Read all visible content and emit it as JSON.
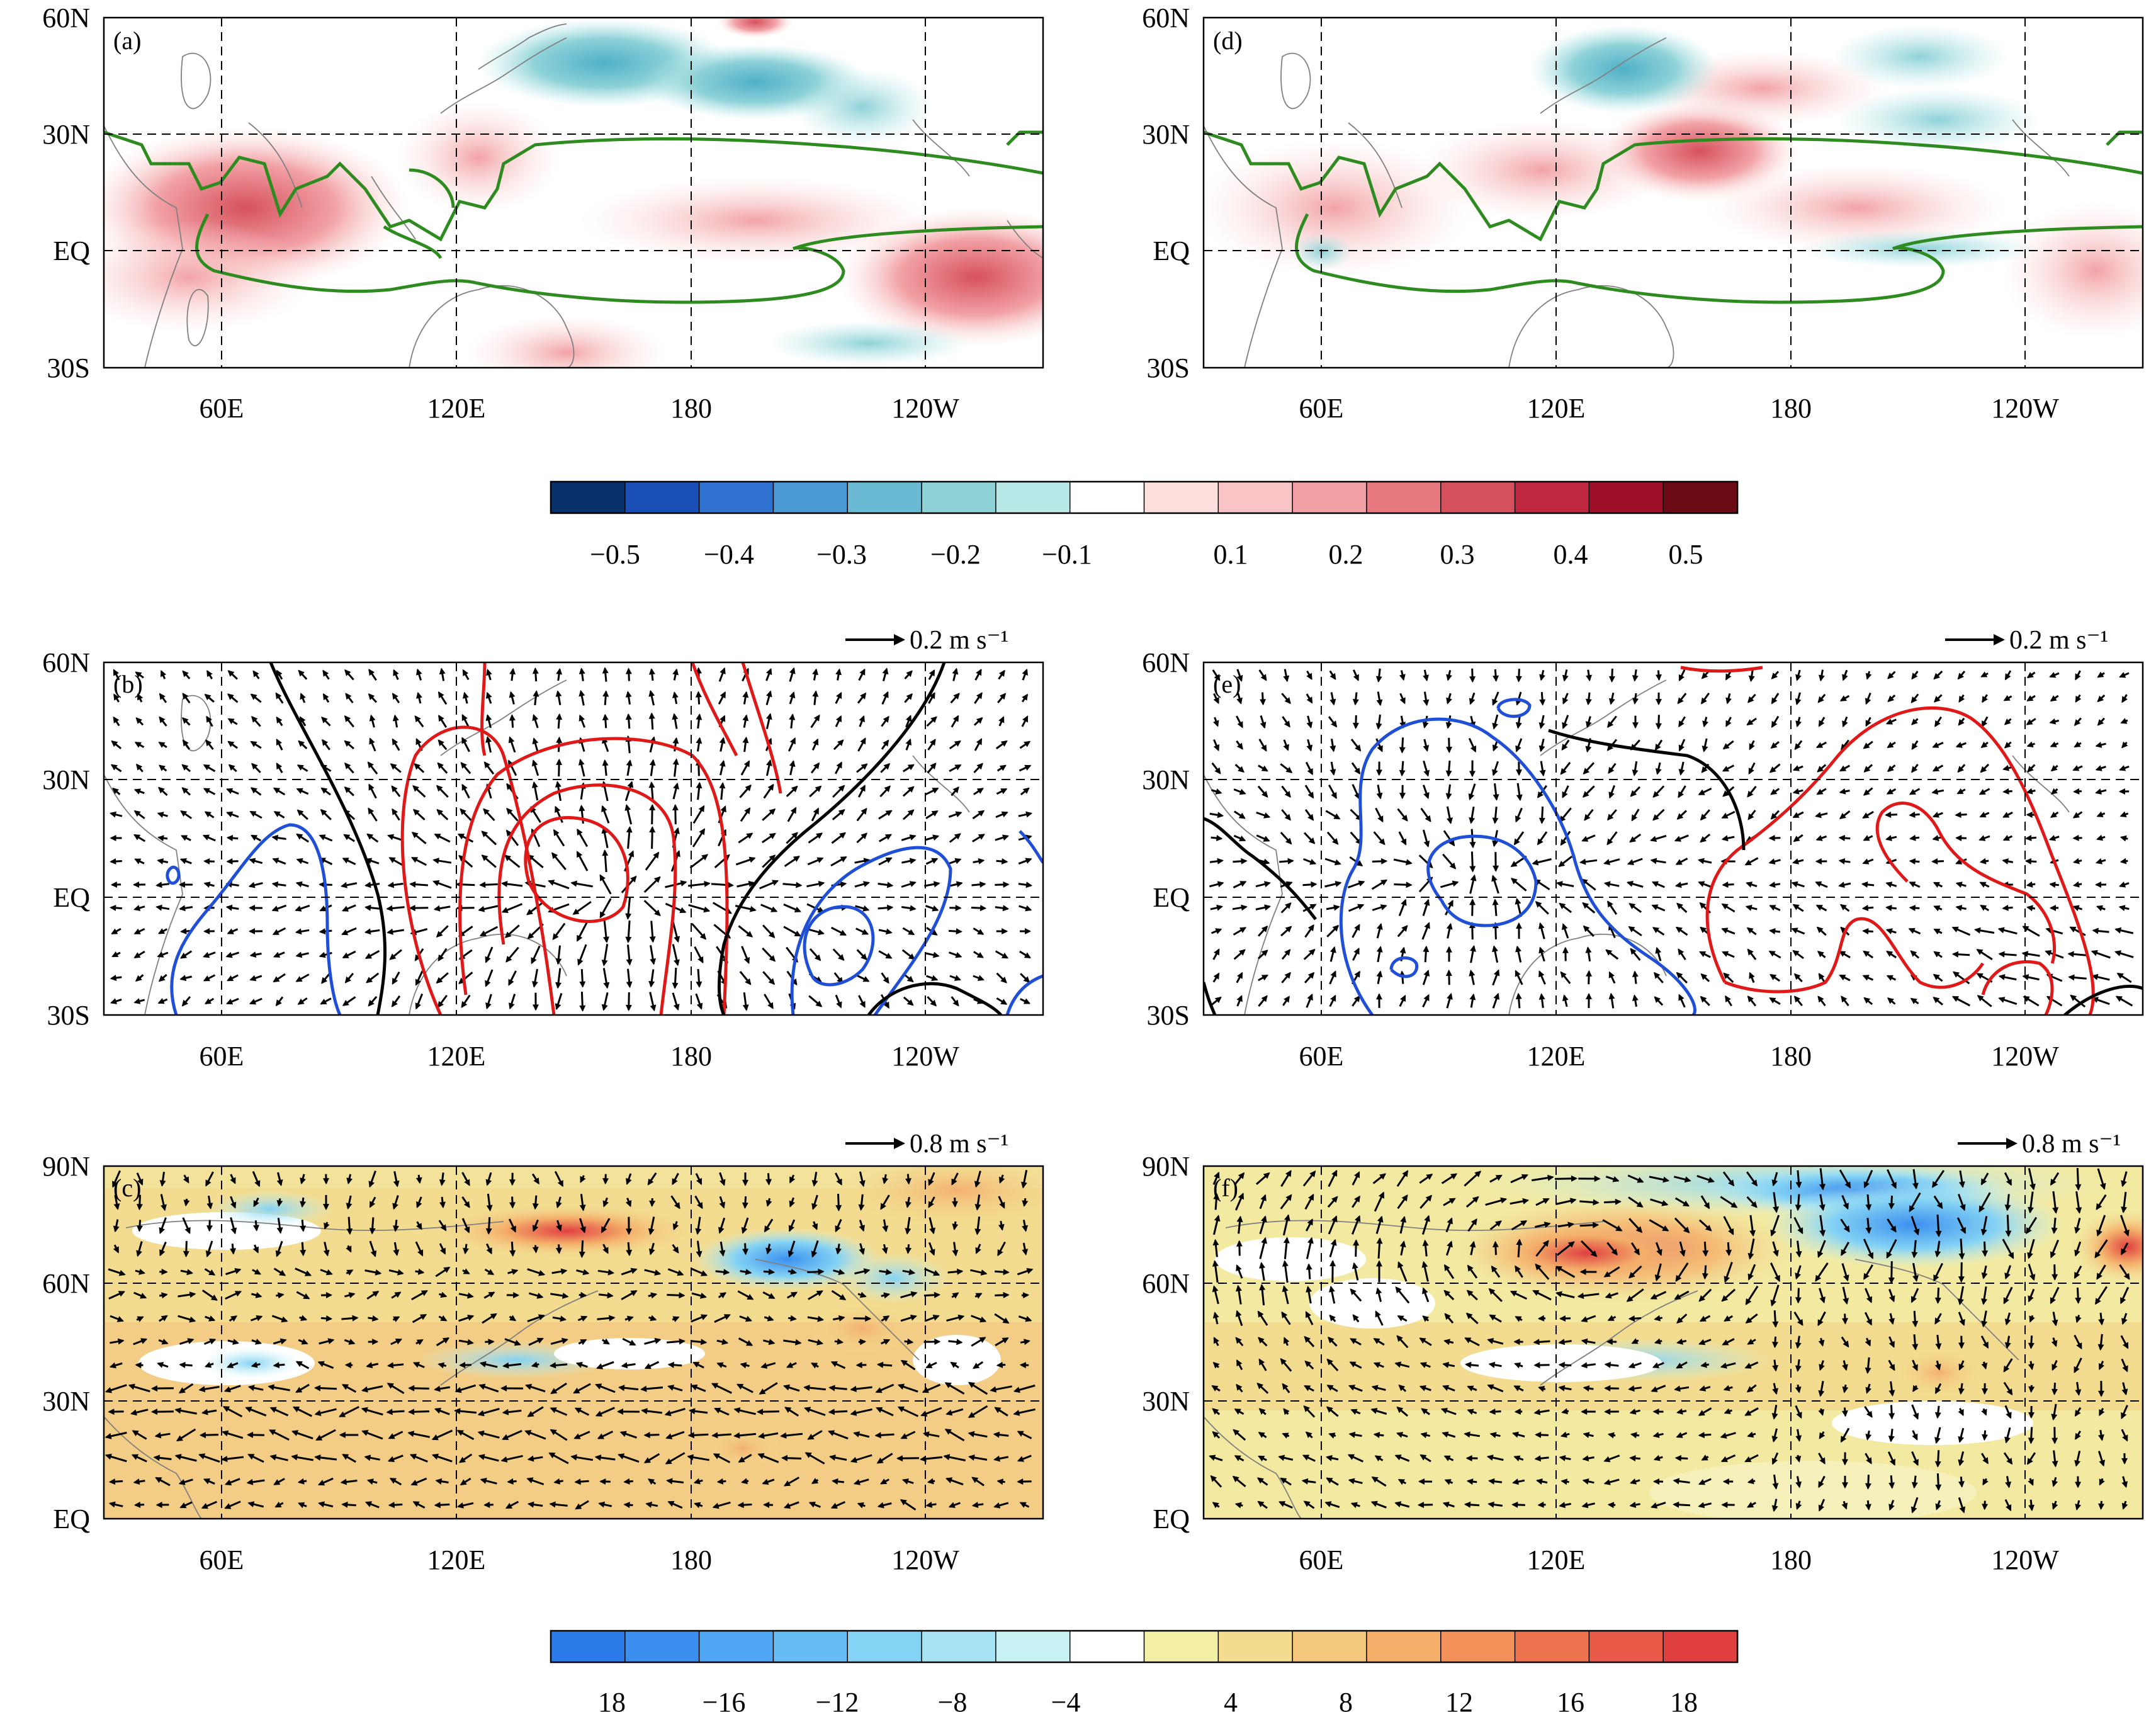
{
  "panels": [
    {
      "id": "a",
      "label": "(a)",
      "y_ticks": [
        "60N",
        "30N",
        "EQ",
        "30S"
      ],
      "x_ticks": [
        "60E",
        "120E",
        "180",
        "120W"
      ],
      "reference_vector": ""
    },
    {
      "id": "d",
      "label": "(d)",
      "y_ticks": [
        "60N",
        "30N",
        "EQ",
        "30S"
      ],
      "x_ticks": [
        "60E",
        "120E",
        "180",
        "120W"
      ],
      "reference_vector": ""
    },
    {
      "id": "b",
      "label": "(b)",
      "y_ticks": [
        "60N",
        "30N",
        "EQ",
        "30S"
      ],
      "x_ticks": [
        "60E",
        "120E",
        "180",
        "120W"
      ],
      "reference_vector": "0.2 m s⁻¹"
    },
    {
      "id": "e",
      "label": "(e)",
      "y_ticks": [
        "60N",
        "30N",
        "EQ",
        "30S"
      ],
      "x_ticks": [
        "60E",
        "120E",
        "180",
        "120W"
      ],
      "reference_vector": "0.2 m s⁻¹"
    },
    {
      "id": "c",
      "label": "(c)",
      "y_ticks": [
        "90N",
        "60N",
        "30N",
        "EQ"
      ],
      "x_ticks": [
        "60E",
        "120E",
        "180",
        "120W"
      ],
      "reference_vector": "0.8 m s⁻¹"
    },
    {
      "id": "f",
      "label": "(f)",
      "y_ticks": [
        "90N",
        "60N",
        "30N",
        "EQ"
      ],
      "x_ticks": [
        "60E",
        "120E",
        "180",
        "120W"
      ],
      "reference_vector": "0.8 m s⁻¹"
    }
  ],
  "colorbar_top": {
    "labels": [
      "−0.5",
      "−0.4",
      "−0.3",
      "−0.2",
      "−0.1",
      "0.1",
      "0.2",
      "0.3",
      "0.4",
      "0.5"
    ],
    "colors": [
      "#08306b",
      "#1a50b5",
      "#2f72d0",
      "#4a98d4",
      "#6bbad4",
      "#8ed2d8",
      "#b7e7e6",
      "#ffffff",
      "#fde0dd",
      "#f9c4c6",
      "#f2a2a6",
      "#e8787f",
      "#d6515d",
      "#c02840",
      "#9e0f2a",
      "#6b0a14"
    ]
  },
  "colorbar_bottom": {
    "labels": [
      "18",
      "−16",
      "−12",
      "−8",
      "−4",
      "4",
      "8",
      "12",
      "16",
      "18"
    ],
    "colors": [
      "#2b7ce8",
      "#3b90ef",
      "#4fa6f2",
      "#66bdf3",
      "#84d2f4",
      "#a5e3f5",
      "#c8f2f4",
      "#ffffff",
      "#f3f0a6",
      "#f3dc8f",
      "#f3c77c",
      "#f4ae6a",
      "#f3915a",
      "#ee7450",
      "#e85a47",
      "#e04040"
    ]
  },
  "colors": {
    "green_contour": "#2e8b20",
    "red_contour": "#e01818",
    "blue_contour": "#1f4fd6",
    "black_contour": "#000000",
    "coastline": "#808080"
  }
}
